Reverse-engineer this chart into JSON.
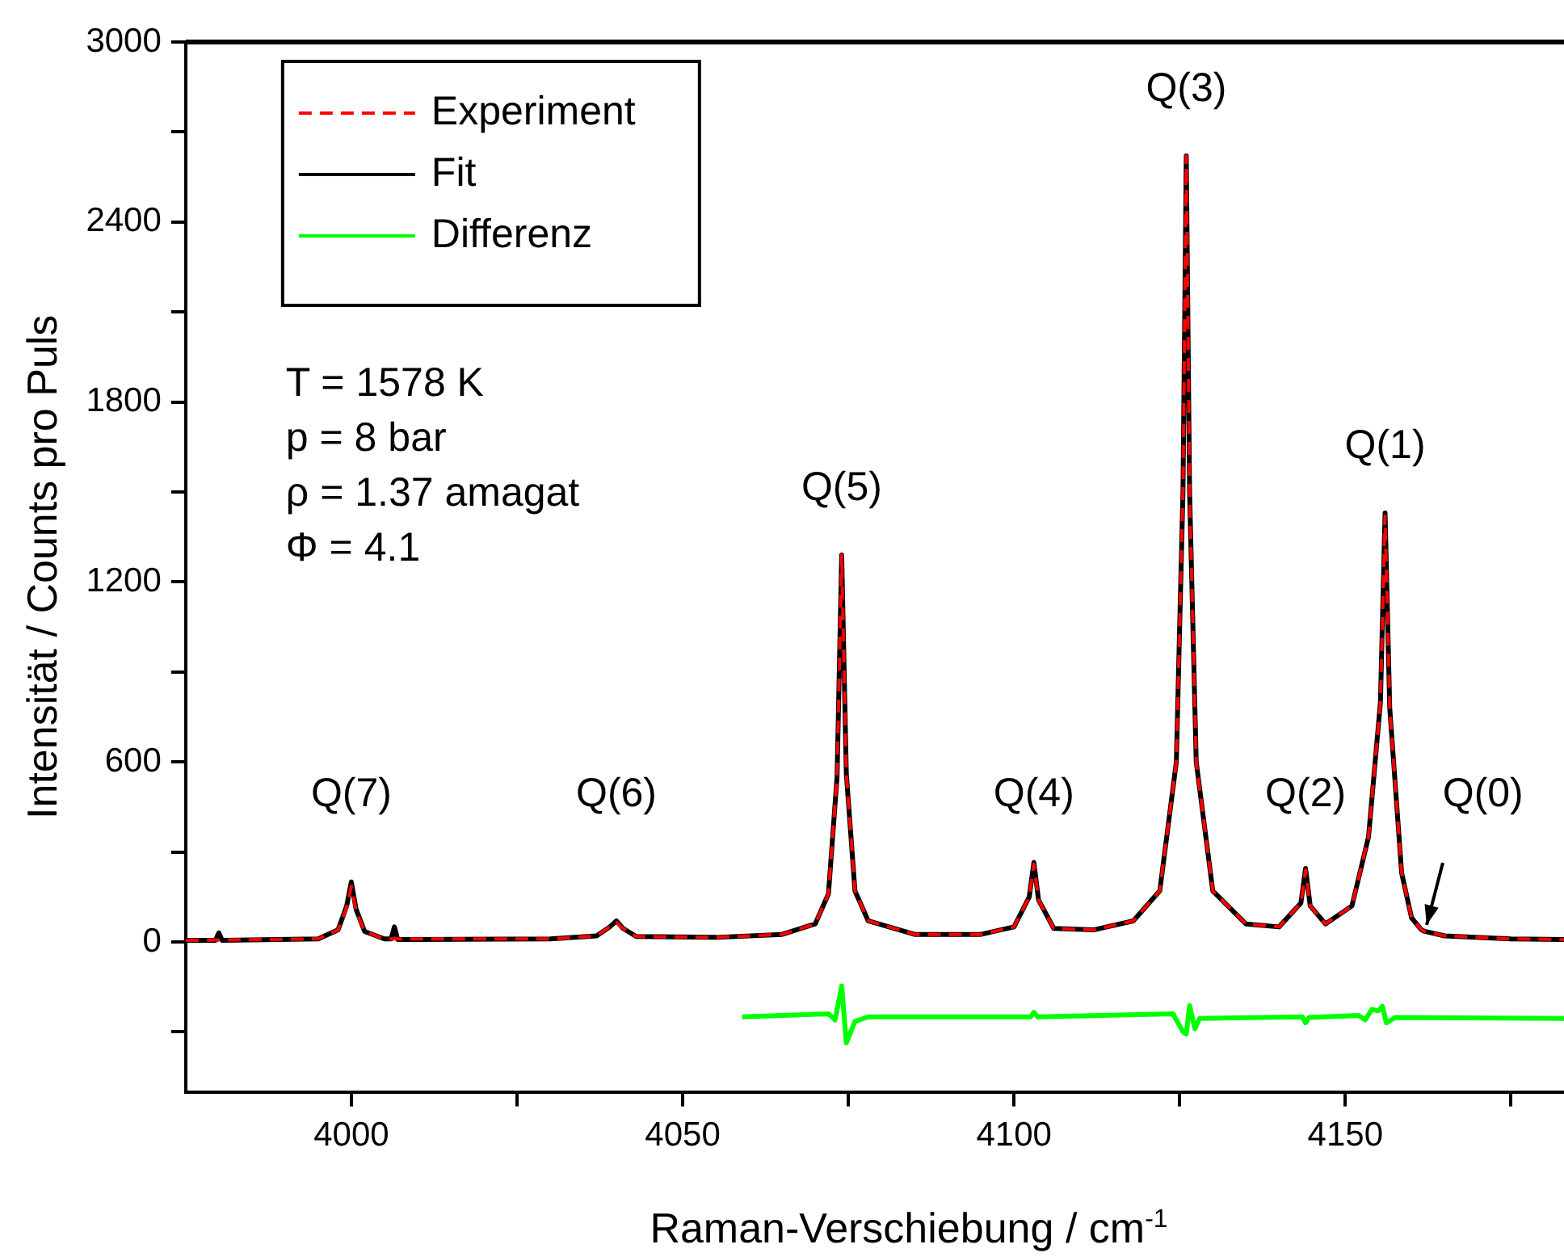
{
  "chart_data": {
    "type": "line",
    "xlabel": "Raman-Verschiebung / cm$^{-1}$",
    "ylabel": "Intensität / Counts pro Puls",
    "xlim": [
      3975,
      4183
    ],
    "xticks": [
      4000,
      {
        "value": 4025,
        "label": null
      },
      4050,
      {
        "value": 4075,
        "label": null
      },
      4100,
      {
        "value": 4125,
        "label": null
      },
      4150,
      {
        "value": 4175,
        "label": null
      }
    ],
    "ylim": [
      -500,
      3000
    ],
    "yticks": [
      {
        "value": -300,
        "label": null
      },
      0,
      {
        "value": 300,
        "label": null
      },
      600,
      {
        "value": 900,
        "label": null
      },
      1200,
      {
        "value": 1500,
        "label": null
      },
      1800,
      {
        "value": 2100,
        "label": null
      },
      2400,
      {
        "value": 2700,
        "label": null
      },
      3000
    ],
    "grid": false,
    "legend": "top left",
    "marker": "none",
    "series": [
      {
        "name": "Experiment",
        "color": "#ff0000",
        "line_style": "dashed",
        "x": [
          3975,
          3995,
          3998,
          3999.3,
          4000,
          4000.7,
          4002,
          4005,
          4030,
          4037,
          4039,
          4040,
          4041,
          4043,
          4055,
          4065,
          4070,
          4072,
          4073.3,
          4074,
          4074.7,
          4076,
          4078,
          4085,
          4095,
          4100,
          4102.3,
          4103,
          4103.7,
          4106,
          4112,
          4118,
          4122,
          4124.5,
          4125.5,
          4126,
          4126.5,
          4127.5,
          4130,
          4135,
          4140,
          4143.3,
          4144,
          4144.7,
          4147,
          4151,
          4153.5,
          4155.3,
          4156,
          4156.7,
          4158.5,
          4160,
          4161.5,
          4162,
          4165,
          4175,
          4183
        ],
        "values": [
          5,
          10,
          40,
          115,
          185,
          105,
          35,
          10,
          10,
          20,
          50,
          65,
          45,
          18,
          15,
          25,
          60,
          160,
          550,
          1290,
          560,
          170,
          70,
          25,
          25,
          50,
          150,
          260,
          140,
          45,
          40,
          70,
          170,
          600,
          1500,
          2620,
          1500,
          600,
          170,
          60,
          50,
          130,
          240,
          120,
          60,
          120,
          350,
          800,
          1420,
          780,
          230,
          80,
          40,
          35,
          20,
          10,
          8
        ]
      },
      {
        "name": "Fit",
        "color": "#000000",
        "line_style": "solid",
        "x": [
          3975,
          3979.5,
          3980,
          3980.5,
          3995,
          3998,
          3999.3,
          4000,
          4000.7,
          4002,
          4005,
          4006,
          4006.5,
          4007,
          4030,
          4037,
          4039,
          4040,
          4041,
          4043,
          4055,
          4065,
          4070,
          4072,
          4073.3,
          4074,
          4074.7,
          4076,
          4078,
          4085,
          4095,
          4100,
          4102.3,
          4103,
          4103.7,
          4106,
          4112,
          4118,
          4122,
          4124.5,
          4125.5,
          4126,
          4126.5,
          4127.5,
          4130,
          4135,
          4140,
          4143.3,
          4144,
          4144.7,
          4147,
          4151,
          4153.5,
          4155.3,
          4156,
          4156.7,
          4158.5,
          4160,
          4161.5,
          4162,
          4165,
          4175,
          4183
        ],
        "values": [
          5,
          5,
          30,
          5,
          10,
          40,
          120,
          200,
          110,
          35,
          10,
          10,
          50,
          8,
          10,
          20,
          50,
          70,
          45,
          18,
          15,
          25,
          60,
          160,
          550,
          1290,
          560,
          170,
          70,
          25,
          25,
          50,
          150,
          265,
          140,
          45,
          40,
          70,
          170,
          600,
          1500,
          2620,
          1500,
          600,
          170,
          60,
          50,
          130,
          245,
          120,
          60,
          120,
          350,
          800,
          1430,
          780,
          230,
          80,
          40,
          35,
          20,
          10,
          8
        ]
      },
      {
        "name": "Differenz",
        "color": "#00ff00",
        "line_style": "solid",
        "x": [
          4059,
          4072,
          4073,
          4074,
          4074.7,
          4076,
          4078,
          4102.5,
          4103,
          4103.6,
          4124,
          4125,
          4125.5,
          4126,
          4126.5,
          4127.3,
          4128,
          4143.5,
          4144,
          4144.5,
          4152,
          4153,
          4154,
          4155,
          4155.6,
          4156.2,
          4157.5,
          4183
        ],
        "values": [
          -250,
          -240,
          -260,
          -147,
          -337,
          -265,
          -250,
          -250,
          -235,
          -250,
          -240,
          -280,
          -300,
          -307,
          -212,
          -290,
          -255,
          -250,
          -270,
          -252,
          -245,
          -260,
          -225,
          -230,
          -215,
          -270,
          -252,
          -255
        ]
      }
    ],
    "annotations": [
      {
        "text": "Q(7)",
        "x": 4000,
        "y": 200
      },
      {
        "text": "Q(6)",
        "x": 4040,
        "y": 70
      },
      {
        "text": "Q(5)",
        "x": 4074,
        "y": 1290
      },
      {
        "text": "Q(4)",
        "x": 4103,
        "y": 265
      },
      {
        "text": "Q(3)",
        "x": 4126,
        "y": 2620
      },
      {
        "text": "Q(2)",
        "x": 4144,
        "y": 245
      },
      {
        "text": "Q(1)",
        "x": 4156,
        "y": 1430
      },
      {
        "text": "Q(0)",
        "x": 4162,
        "y": 35
      },
      "T = 1578 K",
      "p = 8 bar",
      "ρ = 1.37 amagat",
      "Φ = 4.1"
    ]
  }
}
